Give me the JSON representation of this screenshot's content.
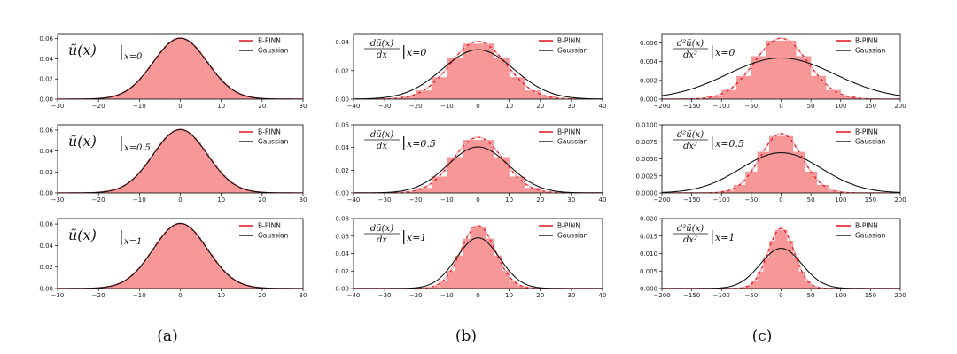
{
  "legend": {
    "bpinn": "B-PINN",
    "gaussian": "Gaussian"
  },
  "colors": {
    "hist": "#f79797",
    "bpinn": "#e8202a",
    "gaussian": "#111111",
    "dashed": "#ffffff"
  },
  "panel_labels": [
    "(a)",
    "(b)",
    "(c)"
  ],
  "chart_data": [
    {
      "id": "a0",
      "col": 0,
      "row": 0,
      "type": "histogram_with_lines",
      "annotation": {
        "lhs": "ũ(x)",
        "sub": "x=0"
      },
      "xlim": [
        -30,
        30
      ],
      "xticks": [
        -30,
        -20,
        -10,
        0,
        10,
        20,
        30
      ],
      "ylim": [
        0,
        0.065
      ],
      "yticks": [
        0.0,
        0.02,
        0.04,
        0.06
      ],
      "ydecimals": 2,
      "series": [
        {
          "name": "B-PINN",
          "kind": "line",
          "mean": 0,
          "sd": 6.6,
          "peak": 0.0605
        },
        {
          "name": "Gaussian",
          "kind": "line",
          "mean": 0,
          "sd": 6.6,
          "peak": 0.0605
        }
      ],
      "histogram": {
        "mean": 0,
        "sd": 6.6,
        "peak": 0.0605,
        "bin_width": 1
      }
    },
    {
      "id": "a1",
      "col": 0,
      "row": 1,
      "type": "histogram_with_lines",
      "annotation": {
        "lhs": "ũ(x)",
        "sub": "x=0.5"
      },
      "xlim": [
        -30,
        30
      ],
      "xticks": [
        -30,
        -20,
        -10,
        0,
        10,
        20,
        30
      ],
      "ylim": [
        0,
        0.065
      ],
      "yticks": [
        0.0,
        0.02,
        0.04,
        0.06
      ],
      "ydecimals": 2,
      "series": [
        {
          "name": "B-PINN",
          "kind": "line",
          "mean": 0,
          "sd": 6.6,
          "peak": 0.0605
        },
        {
          "name": "Gaussian",
          "kind": "line",
          "mean": 0,
          "sd": 6.6,
          "peak": 0.0605
        }
      ],
      "histogram": {
        "mean": 0,
        "sd": 6.6,
        "peak": 0.0605,
        "bin_width": 1
      }
    },
    {
      "id": "a2",
      "col": 0,
      "row": 2,
      "type": "histogram_with_lines",
      "annotation": {
        "lhs": "ũ(x)",
        "sub": "x=1"
      },
      "xlim": [
        -30,
        30
      ],
      "xticks": [
        -30,
        -20,
        -10,
        0,
        10,
        20,
        30
      ],
      "ylim": [
        0,
        0.065
      ],
      "yticks": [
        0.0,
        0.02,
        0.04,
        0.06
      ],
      "ydecimals": 2,
      "series": [
        {
          "name": "B-PINN",
          "kind": "line",
          "mean": 0,
          "sd": 6.6,
          "peak": 0.0605
        },
        {
          "name": "Gaussian",
          "kind": "line",
          "mean": 0,
          "sd": 6.6,
          "peak": 0.0605
        }
      ],
      "histogram": {
        "mean": 0,
        "sd": 6.6,
        "peak": 0.0605,
        "bin_width": 1
      }
    },
    {
      "id": "b0",
      "col": 1,
      "row": 0,
      "type": "histogram_with_lines",
      "annotation": {
        "frac_num": "dũ(x)",
        "frac_den": "dx",
        "sub": "x=0"
      },
      "xlim": [
        -40,
        40
      ],
      "xticks": [
        -40,
        -30,
        -20,
        -10,
        0,
        10,
        20,
        30,
        40
      ],
      "ylim": [
        0,
        0.046
      ],
      "yticks": [
        0.0,
        0.02,
        0.04
      ],
      "ydecimals": 2,
      "series": [
        {
          "name": "B-PINN",
          "kind": "line",
          "mean": 0,
          "sd": 9.0,
          "peak": 0.0405
        },
        {
          "name": "Gaussian",
          "kind": "line",
          "mean": 0,
          "sd": 11.5,
          "peak": 0.0347
        }
      ],
      "histogram": {
        "mean": 0,
        "sd": 9.0,
        "peak": 0.0405,
        "bin_width": 5
      }
    },
    {
      "id": "b1",
      "col": 1,
      "row": 1,
      "type": "histogram_with_lines",
      "annotation": {
        "frac_num": "dũ(x)",
        "frac_den": "dx",
        "sub": "x=0.5"
      },
      "xlim": [
        -40,
        40
      ],
      "xticks": [
        -40,
        -30,
        -20,
        -10,
        0,
        10,
        20,
        30,
        40
      ],
      "ylim": [
        0,
        0.06
      ],
      "yticks": [
        0.0,
        0.02,
        0.04,
        0.06
      ],
      "ydecimals": 2,
      "series": [
        {
          "name": "B-PINN",
          "kind": "line",
          "mean": 0,
          "sd": 8.0,
          "peak": 0.049
        },
        {
          "name": "Gaussian",
          "kind": "line",
          "mean": 0,
          "sd": 9.8,
          "peak": 0.0405
        }
      ],
      "histogram": {
        "mean": 0,
        "sd": 8.0,
        "peak": 0.049,
        "bin_width": 5
      }
    },
    {
      "id": "b2",
      "col": 1,
      "row": 2,
      "type": "histogram_with_lines",
      "annotation": {
        "frac_num": "dũ(x)",
        "frac_den": "dx",
        "sub": "x=1"
      },
      "xlim": [
        -40,
        40
      ],
      "xticks": [
        -40,
        -30,
        -20,
        -10,
        0,
        10,
        20,
        30,
        40
      ],
      "ylim": [
        0,
        0.08
      ],
      "yticks": [
        0.0,
        0.02,
        0.04,
        0.06,
        0.08
      ],
      "ydecimals": 2,
      "series": [
        {
          "name": "B-PINN",
          "kind": "line",
          "mean": 0,
          "sd": 5.5,
          "peak": 0.072
        },
        {
          "name": "Gaussian",
          "kind": "line",
          "mean": 0,
          "sd": 6.9,
          "peak": 0.058
        }
      ],
      "histogram": {
        "mean": 0,
        "sd": 5.5,
        "peak": 0.072,
        "bin_width": 2.5
      }
    },
    {
      "id": "c0",
      "col": 2,
      "row": 0,
      "type": "histogram_with_lines",
      "annotation": {
        "frac_num": "d²ũ(x)",
        "frac_den": "dx²",
        "sub": "x=0"
      },
      "xlim": [
        -200,
        200
      ],
      "xticks": [
        -200,
        -150,
        -100,
        -50,
        0,
        50,
        100,
        150,
        200
      ],
      "ylim": [
        0,
        0.007
      ],
      "yticks": [
        0.0,
        0.002,
        0.004,
        0.006
      ],
      "ydecimals": 3,
      "series": [
        {
          "name": "B-PINN",
          "kind": "line",
          "mean": 0,
          "sd": 45,
          "peak": 0.0065
        },
        {
          "name": "Gaussian",
          "kind": "line",
          "mean": 0,
          "sd": 90,
          "peak": 0.0044
        }
      ],
      "histogram": {
        "mean": 0,
        "sd": 45,
        "peak": 0.0065,
        "bin_width": 25
      }
    },
    {
      "id": "c1",
      "col": 2,
      "row": 1,
      "type": "histogram_with_lines",
      "annotation": {
        "frac_num": "d²ũ(x)",
        "frac_den": "dx²",
        "sub": "x=0.5"
      },
      "xlim": [
        -200,
        200
      ],
      "xticks": [
        -200,
        -150,
        -100,
        -50,
        0,
        50,
        100,
        150,
        200
      ],
      "ylim": [
        0,
        0.01
      ],
      "yticks": [
        0.0,
        0.0025,
        0.005,
        0.0075,
        0.01
      ],
      "ydecimals": 4,
      "series": [
        {
          "name": "B-PINN",
          "kind": "line",
          "mean": 0,
          "sd": 35,
          "peak": 0.0087
        },
        {
          "name": "Gaussian",
          "kind": "line",
          "mean": 0,
          "sd": 68,
          "peak": 0.0059
        }
      ],
      "histogram": {
        "mean": 0,
        "sd": 35,
        "peak": 0.0087,
        "bin_width": 20
      }
    },
    {
      "id": "c2",
      "col": 2,
      "row": 2,
      "type": "histogram_with_lines",
      "annotation": {
        "frac_num": "d²ũ(x)",
        "frac_den": "dx²",
        "sub": "x=1"
      },
      "xlim": [
        -200,
        200
      ],
      "xticks": [
        -200,
        -150,
        -100,
        -50,
        0,
        50,
        100,
        150,
        200
      ],
      "ylim": [
        0,
        0.02
      ],
      "yticks": [
        0.0,
        0.005,
        0.01,
        0.015,
        0.02
      ],
      "ydecimals": 3,
      "series": [
        {
          "name": "B-PINN",
          "kind": "line",
          "mean": 0,
          "sd": 22,
          "peak": 0.0172
        },
        {
          "name": "Gaussian",
          "kind": "line",
          "mean": 0,
          "sd": 35,
          "peak": 0.0115
        }
      ],
      "histogram": {
        "mean": 0,
        "sd": 22,
        "peak": 0.0172,
        "bin_width": 10
      }
    }
  ]
}
